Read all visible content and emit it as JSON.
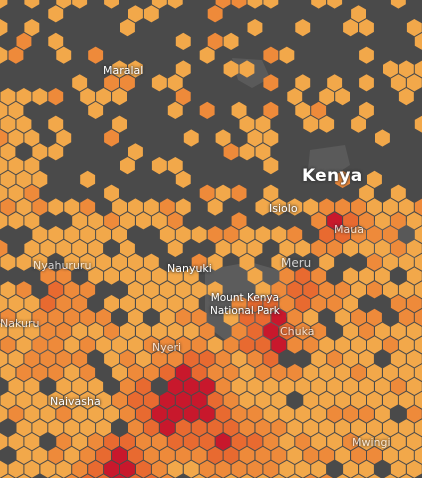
{
  "map": {
    "labels": {
      "country": "Kenya",
      "maralal": "Maralal",
      "isiolo": "Isiolo",
      "maua": "Maua",
      "nyahururu": "Nyahururu",
      "nanyuki": "Nanyuki",
      "meru": "Meru",
      "park_line1": "Mount Kenya",
      "park_line2": "National Park",
      "chuka": "Chuka",
      "nyeri": "Nyeri",
      "nakuru": "Nakuru",
      "naivasha": "Naivasha",
      "mwingi": "Mwingi"
    },
    "colors": {
      "background": "#4a4a4a",
      "water": "#5c5c5c",
      "low": "#f2a84a",
      "mid": "#ee8a3a",
      "high": "#e86a30",
      "max": "#c8182c"
    }
  }
}
